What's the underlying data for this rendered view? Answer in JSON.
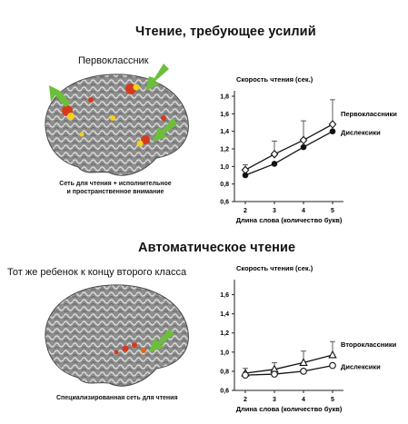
{
  "section1": {
    "title": "Чтение, требующее усилий",
    "brain_label": "Первоклассник",
    "caption_line1": "Сеть для чтения + исполнительное",
    "caption_line2": "и пространственное внимание"
  },
  "section2": {
    "title": "Автоматическое чтение",
    "brain_label": "Тот же ребенок к концу второго класса",
    "caption": "Специализированная сеть для чтения"
  },
  "colors": {
    "arrow": "#6cbf3a",
    "activation_red": "#d63a1e",
    "activation_yellow": "#f3d21a",
    "brain": "#8a8a8a"
  },
  "chart_data": [
    {
      "type": "line",
      "ylabel": "Скорость чтения (сек.)",
      "xlabel": "Длина слова (количество букв)",
      "x": [
        2,
        3,
        4,
        5
      ],
      "ylim": [
        0.6,
        1.8
      ],
      "yticks": [
        "0,6",
        "0,8",
        "1,0",
        "1,2",
        "1,4",
        "1,6",
        "1,8"
      ],
      "xticks": [
        "2",
        "3",
        "4",
        "5"
      ],
      "series": [
        {
          "name": "Первоклассники",
          "values": [
            0.96,
            1.14,
            1.3,
            1.48
          ],
          "err": [
            0.06,
            0.15,
            0.22,
            0.28
          ],
          "marker": "open-diamond"
        },
        {
          "name": "Дислексики",
          "values": [
            0.9,
            1.03,
            1.22,
            1.4
          ],
          "err": [
            0,
            0,
            0,
            0
          ],
          "marker": "filled-circle"
        }
      ]
    },
    {
      "type": "line",
      "ylabel": "Скорость чтения (сек.)",
      "xlabel": "Длина слова (количество букв)",
      "x": [
        2,
        3,
        4,
        5
      ],
      "ylim": [
        0.6,
        1.7
      ],
      "yticks": [
        "0,6",
        "0,8",
        "1,0",
        "1,2",
        "1,4",
        "1,6"
      ],
      "xticks": [
        "2",
        "3",
        "4",
        "5"
      ],
      "series": [
        {
          "name": "Второклассники",
          "values": [
            0.78,
            0.82,
            0.89,
            0.97
          ],
          "err": [
            0.05,
            0.07,
            0.12,
            0.14
          ],
          "marker": "open-triangle"
        },
        {
          "name": "Дислексики",
          "values": [
            0.76,
            0.77,
            0.8,
            0.86
          ],
          "err": [
            0,
            0,
            0,
            0
          ],
          "marker": "open-circle"
        }
      ]
    }
  ]
}
